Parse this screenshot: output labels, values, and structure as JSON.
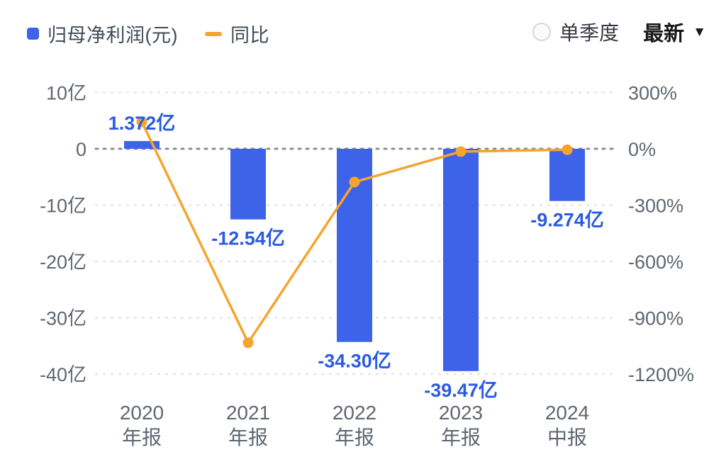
{
  "legend": {
    "profit_label": "归母净利润(元)",
    "yoy_label": "同比"
  },
  "controls": {
    "radio_label": "单季度",
    "dropdown_label": "最新",
    "caret": "▼"
  },
  "colors": {
    "bar": "#3d63e8",
    "line": "#f4a52d",
    "value_label": "#2b5ce0",
    "axis_text": "#5f6670",
    "grid": "#dcdcdc",
    "zero_line": "#8f8f8f",
    "legend_text": "#404b57"
  },
  "chart_data": {
    "type": "bar",
    "combo": "bar+line",
    "categories": [
      "2020 年报",
      "2021 年报",
      "2022 年报",
      "2023 年报",
      "2024 中报"
    ],
    "x_years": [
      "2020",
      "2021",
      "2022",
      "2023",
      "2024"
    ],
    "x_periods": [
      "年报",
      "年报",
      "年报",
      "年报",
      "中报"
    ],
    "series": [
      {
        "name": "归母净利润(元)",
        "type": "bar",
        "unit": "亿",
        "values": [
          1.372,
          -12.54,
          -34.3,
          -39.47,
          -9.274
        ],
        "value_labels": [
          "1.372亿",
          "-12.54亿",
          "-34.30亿",
          "-39.47亿",
          "-9.274亿"
        ]
      },
      {
        "name": "同比",
        "type": "line",
        "unit": "%",
        "values": [
          141,
          -1014,
          -174,
          -15,
          -5
        ]
      }
    ],
    "left_axis": {
      "ticks": [
        10,
        0,
        -10,
        -20,
        -30,
        -40
      ],
      "labels": [
        "10亿",
        "0",
        "-10亿",
        "-20亿",
        "-30亿",
        "-40亿"
      ],
      "range": [
        -45,
        12
      ]
    },
    "right_axis": {
      "ticks": [
        300,
        0,
        -300,
        -600,
        -900,
        -1200
      ],
      "labels": [
        "300%",
        "0%",
        "-300%",
        "-600%",
        "-900%",
        "-1200%"
      ],
      "range": [
        -1350,
        360
      ]
    },
    "grid": "horizontal-dotted",
    "legend_position": "top-left"
  }
}
